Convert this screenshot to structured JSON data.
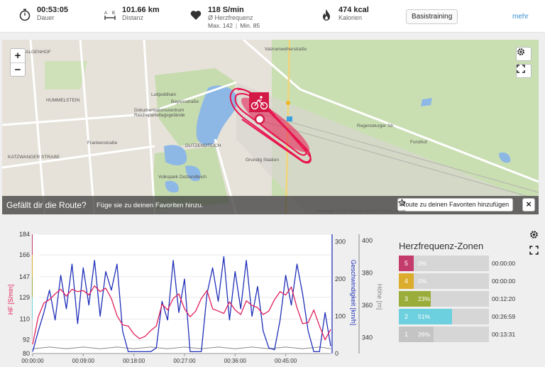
{
  "stats": {
    "duration": {
      "value": "00:53:05",
      "label": "Dauer",
      "icon": "stopwatch-icon"
    },
    "distance": {
      "value": "101.66 km",
      "label": "Distanz",
      "icon": "distance-icon"
    },
    "heart": {
      "value": "118 S/min",
      "label": "Ø Herzfrequenz",
      "max": "Max. 142",
      "min": "Min. 85",
      "icon": "heart-icon"
    },
    "calories": {
      "value": "474 kcal",
      "label": "Kalorien",
      "icon": "flame-icon"
    },
    "training_button": "Basistraining",
    "more_link": "mehr"
  },
  "map": {
    "zoom_in": "+",
    "zoom_out": "−",
    "labels": [
      "GALGENHOF",
      "HUMMELSTEIN",
      "Frankenstraße",
      "KATZWANGER STRAẞE",
      "Luitpoldhain",
      "Dokumentationszentrum Reichsparteitagsgelände",
      "DUTZENDTEICH",
      "Grundig Stadion",
      "Volkspark Dutzendteich",
      "Forsthof",
      "Regensburger Str.",
      "Bayernstraße",
      "Valznerweiherstraße"
    ],
    "banner_question": "Gefällt dir die Route?",
    "banner_text": "Füge sie zu deinen Favoriten hinzu.",
    "favorite_button": "Route zu deinen Favoriten hinzufügen",
    "close_label": "×",
    "attribution": "Kartendaten © 2015 GeoBasis-DE/BKG (©2009), Google"
  },
  "chart_data": {
    "type": "line",
    "x_ticks": [
      "00:00:00",
      "00:09:00",
      "00:18:00",
      "00:27:00",
      "00:36:00",
      "00:45:00"
    ],
    "x_range_min": [
      0,
      53
    ],
    "hr_axis": {
      "label": "HF [S/min]",
      "ticks": [
        80,
        92,
        110,
        129,
        147,
        166,
        184
      ],
      "range": [
        80,
        184
      ],
      "color": "#e0205a"
    },
    "speed_axis": {
      "label": "Geschwindigkeit [km/h]",
      "ticks": [
        0,
        100,
        200,
        300
      ],
      "range": [
        0,
        320
      ],
      "color": "#1f2fb8"
    },
    "altitude_axis": {
      "label": "Höhe [m]",
      "ticks": [
        340,
        360,
        380,
        400
      ],
      "range": [
        330,
        404
      ],
      "color": "#888888"
    },
    "zone_colors": [
      "#c4c4c4",
      "#6dd0df",
      "#9aad3a",
      "#dcad2c",
      "#c43c6c"
    ],
    "series": [
      {
        "name": "HF [S/min]",
        "color": "#e0205a",
        "t": [
          0,
          1,
          2,
          3,
          4,
          5,
          6,
          7,
          8,
          9,
          10,
          11,
          12,
          13,
          14,
          15,
          16,
          17,
          18,
          19,
          20,
          21,
          22,
          23,
          24,
          25,
          26,
          27,
          28,
          29,
          30,
          31,
          32,
          33,
          34,
          35,
          36,
          37,
          38,
          39,
          40,
          41,
          42,
          43,
          44,
          45,
          46,
          47,
          48,
          49,
          50,
          51,
          52,
          53
        ],
        "values": [
          88,
          112,
          124,
          127,
          132,
          136,
          130,
          136,
          134,
          135,
          131,
          139,
          134,
          137,
          128,
          113,
          105,
          104,
          97,
          93,
          95,
          100,
          104,
          123,
          118,
          128,
          132,
          119,
          112,
          117,
          128,
          135,
          119,
          117,
          115,
          125,
          118,
          114,
          126,
          122,
          120,
          114,
          117,
          127,
          134,
          131,
          138,
          120,
          106,
          107,
          118,
          104,
          92,
          101
        ]
      },
      {
        "name": "Geschwindigkeit [km/h]",
        "color": "#1f2fb8",
        "t": [
          0,
          1,
          2,
          3,
          4,
          5,
          6,
          7,
          8,
          9,
          10,
          11,
          12,
          13,
          14,
          15,
          16,
          17,
          18,
          19,
          20,
          21,
          22,
          23,
          24,
          25,
          26,
          27,
          28,
          29,
          30,
          31,
          32,
          33,
          34,
          35,
          36,
          37,
          38,
          39,
          40,
          41,
          42,
          43,
          44,
          45,
          46,
          47,
          48,
          49,
          50,
          51,
          52,
          53
        ],
        "values": [
          5,
          60,
          110,
          170,
          90,
          210,
          120,
          240,
          80,
          230,
          130,
          250,
          100,
          220,
          170,
          240,
          60,
          5,
          5,
          5,
          5,
          5,
          15,
          140,
          90,
          250,
          110,
          200,
          5,
          5,
          5,
          160,
          230,
          140,
          260,
          90,
          220,
          120,
          250,
          100,
          180,
          60,
          15,
          10,
          90,
          210,
          130,
          240,
          160,
          60,
          5,
          5,
          110,
          20
        ]
      },
      {
        "name": "Höhe [m]",
        "color": "#888888",
        "t": [
          0,
          3,
          6,
          9,
          12,
          15,
          18,
          21,
          24,
          27,
          30,
          33,
          36,
          39,
          42,
          45,
          48,
          51,
          53
        ],
        "values": [
          333,
          334,
          333,
          334,
          333,
          334,
          333,
          334,
          333,
          334,
          333,
          334,
          333,
          334,
          333,
          334,
          333,
          334,
          333
        ]
      }
    ]
  },
  "zones": {
    "title": "Herzfrequenz-Zonen",
    "items": [
      {
        "num": "5",
        "pct": "0%",
        "time": "00:00:00",
        "fill": 0,
        "color": "#c43c6c"
      },
      {
        "num": "4",
        "pct": "0%",
        "time": "00:00:00",
        "fill": 0,
        "color": "#dcad2c"
      },
      {
        "num": "3",
        "pct": "23%",
        "time": "00:12:20",
        "fill": 0.23,
        "color": "#9aad3a"
      },
      {
        "num": "2",
        "pct": "51%",
        "time": "00:26:59",
        "fill": 0.51,
        "color": "#6dd0df"
      },
      {
        "num": "1",
        "pct": "26%",
        "time": "00:13:31",
        "fill": 0.26,
        "color": "#c4c4c4"
      }
    ]
  }
}
